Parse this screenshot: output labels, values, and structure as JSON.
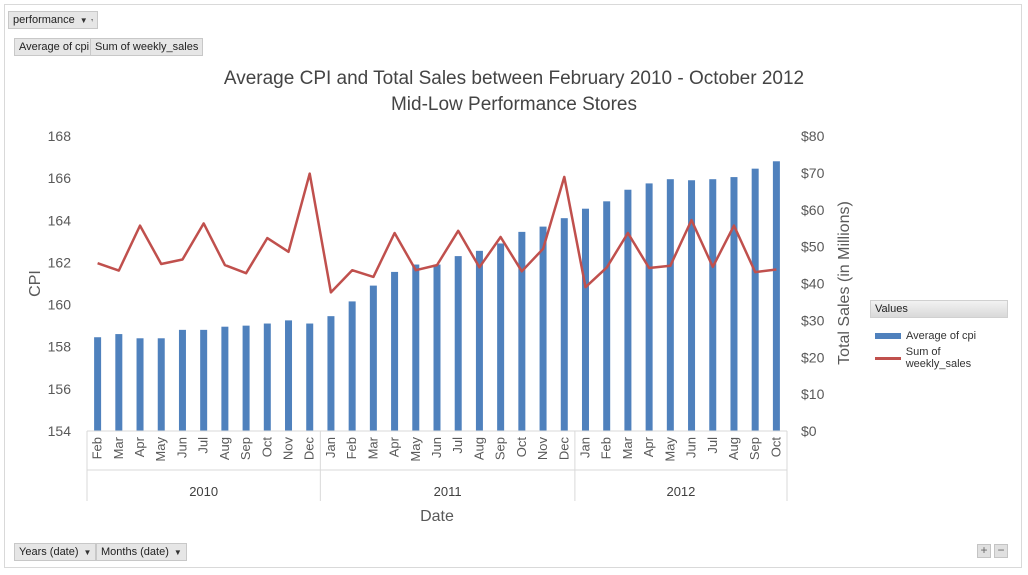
{
  "filter": {
    "label": "performance"
  },
  "value_buttons": [
    "Average of cpi",
    "Sum of weekly_sales"
  ],
  "axis_buttons": [
    "Years (date)",
    "Months (date)"
  ],
  "zoom": {
    "plus": "+",
    "minus": "−"
  },
  "legend": {
    "header": "Values"
  },
  "colors": {
    "bar": "#4f81bd",
    "line": "#c0504d"
  },
  "chart_data": {
    "type": "bar",
    "title": "Average CPI and Total Sales between February 2010 - October 2012",
    "subtitle": "Mid-Low Performance Stores",
    "xlabel": "Date",
    "ylabel": "CPI",
    "y2label": "Total Sales (in Millions)",
    "ylim": [
      154,
      168
    ],
    "yticks": [
      "154",
      "156",
      "158",
      "160",
      "162",
      "164",
      "166",
      "168"
    ],
    "y2lim": [
      0,
      80
    ],
    "y2ticks": [
      "$0",
      "$10",
      "$20",
      "$30",
      "$40",
      "$50",
      "$60",
      "$70",
      "$80"
    ],
    "grid": false,
    "legend_position": "right",
    "years": [
      {
        "label": "2010",
        "count": 11
      },
      {
        "label": "2011",
        "count": 12
      },
      {
        "label": "2012",
        "count": 10
      }
    ],
    "categories": [
      "Feb",
      "Mar",
      "Apr",
      "May",
      "Jun",
      "Jul",
      "Aug",
      "Sep",
      "Oct",
      "Nov",
      "Dec",
      "Jan",
      "Feb",
      "Mar",
      "Apr",
      "May",
      "Jun",
      "Jul",
      "Aug",
      "Sep",
      "Oct",
      "Nov",
      "Dec",
      "Jan",
      "Feb",
      "Mar",
      "Apr",
      "May",
      "Jun",
      "Jul",
      "Aug",
      "Sep",
      "Oct"
    ],
    "series": [
      {
        "name": "Average of cpi",
        "type": "bar",
        "axis": "left",
        "values": [
          158.45,
          158.6,
          158.4,
          158.4,
          158.8,
          158.8,
          158.95,
          159.0,
          159.1,
          159.25,
          159.1,
          159.45,
          160.15,
          160.9,
          161.55,
          161.9,
          161.9,
          162.3,
          162.55,
          162.9,
          163.45,
          163.7,
          164.1,
          164.55,
          164.9,
          165.45,
          165.75,
          165.95,
          165.9,
          165.95,
          166.05,
          166.45,
          166.8
        ]
      },
      {
        "name": "Sum of weekly_sales",
        "type": "line",
        "axis": "right",
        "values": [
          45.5,
          43.5,
          55.7,
          45.3,
          46.5,
          56.3,
          45.0,
          42.8,
          52.3,
          48.6,
          69.8,
          37.6,
          43.6,
          41.8,
          53.7,
          43.6,
          45.0,
          54.3,
          44.4,
          52.6,
          43.3,
          49.4,
          68.9,
          39.0,
          44.3,
          53.7,
          44.2,
          44.8,
          57.2,
          44.5,
          55.7,
          43.1,
          43.8
        ]
      }
    ]
  }
}
